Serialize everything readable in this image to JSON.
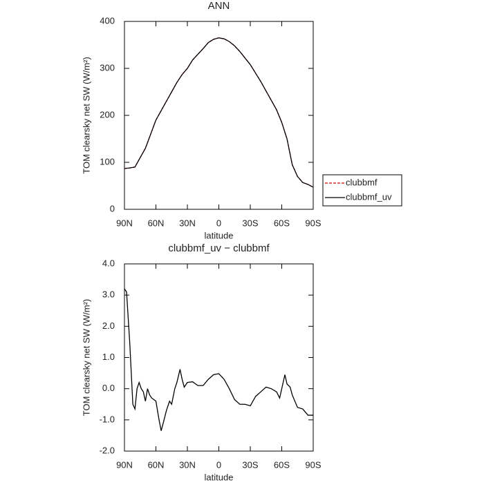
{
  "chart_data": [
    {
      "type": "line",
      "title": "ANN",
      "xlabel": "latitude",
      "ylabel": "TOM clearsky net SW (W/m²)",
      "x": [
        90,
        85,
        80,
        75,
        70,
        65,
        60,
        55,
        50,
        45,
        40,
        35,
        30,
        25,
        20,
        15,
        10,
        5,
        0,
        -5,
        -10,
        -15,
        -20,
        -25,
        -30,
        -35,
        -40,
        -45,
        -50,
        -55,
        -60,
        -65,
        -70,
        -75,
        -80,
        -85,
        -90
      ],
      "series": [
        {
          "name": "clubbmf",
          "color": "#cc0000",
          "linestyle": "dashed",
          "values": [
            87,
            88,
            90,
            110,
            130,
            160,
            190,
            210,
            230,
            250,
            270,
            287,
            300,
            318,
            330,
            342,
            355,
            362,
            365,
            363,
            357,
            348,
            336,
            322,
            308,
            290,
            272,
            252,
            232,
            212,
            185,
            150,
            95,
            70,
            57,
            53,
            47
          ]
        },
        {
          "name": "clubbmf_uv",
          "color": "#000000",
          "linestyle": "solid",
          "values": [
            87,
            88,
            90,
            110,
            130,
            160,
            190,
            210,
            230,
            250,
            270,
            287,
            300,
            318,
            330,
            342,
            355,
            362,
            365,
            363,
            357,
            348,
            336,
            322,
            308,
            290,
            272,
            252,
            232,
            212,
            185,
            150,
            95,
            70,
            57,
            53,
            47
          ]
        }
      ],
      "xlim": [
        90,
        -90
      ],
      "xticks": [
        {
          "value": 90,
          "label": "90N"
        },
        {
          "value": 60,
          "label": "60N"
        },
        {
          "value": 30,
          "label": "30N"
        },
        0,
        {
          "value": -30,
          "label": "30S"
        },
        {
          "value": -60,
          "label": "60S"
        },
        {
          "value": -90,
          "label": "90S"
        }
      ],
      "ylim": [
        0,
        400
      ],
      "yticks": [
        0,
        100,
        200,
        300,
        400
      ],
      "legend": "right"
    },
    {
      "type": "line",
      "title": "clubbmf_uv − clubbmf",
      "xlabel": "latitude",
      "ylabel": "TOM clearsky net SW (W/m²)",
      "x": [
        90,
        88,
        85,
        82,
        80,
        78,
        76,
        74,
        72,
        70,
        68,
        66,
        64,
        60,
        57,
        55,
        53,
        50,
        47,
        45,
        42,
        40,
        37,
        35,
        33,
        30,
        25,
        20,
        15,
        10,
        5,
        0,
        -5,
        -10,
        -15,
        -20,
        -25,
        -30,
        -35,
        -40,
        -45,
        -50,
        -55,
        -58,
        -60,
        -63,
        -65,
        -68,
        -70,
        -75,
        -80,
        -85,
        -90
      ],
      "values": [
        3.2,
        3.1,
        1.5,
        -0.5,
        -0.65,
        0.0,
        0.2,
        0.0,
        -0.1,
        -0.4,
        0.0,
        -0.2,
        -0.3,
        -0.4,
        -1.0,
        -1.35,
        -1.1,
        -0.7,
        -0.4,
        -0.5,
        0.0,
        0.2,
        0.62,
        0.3,
        0.05,
        0.2,
        0.22,
        0.1,
        0.1,
        0.3,
        0.45,
        0.48,
        0.3,
        0.0,
        -0.35,
        -0.5,
        -0.5,
        -0.55,
        -0.25,
        -0.1,
        0.05,
        0.0,
        -0.1,
        -0.3,
        0.0,
        0.45,
        0.15,
        0.05,
        -0.2,
        -0.6,
        -0.65,
        -0.85,
        -0.85
      ],
      "color": "#000000",
      "xlim": [
        90,
        -90
      ],
      "xticks": [
        {
          "value": 90,
          "label": "90N"
        },
        {
          "value": 60,
          "label": "60N"
        },
        {
          "value": 30,
          "label": "30N"
        },
        0,
        {
          "value": -30,
          "label": "30S"
        },
        {
          "value": -60,
          "label": "60S"
        },
        {
          "value": -90,
          "label": "90S"
        }
      ],
      "ylim": [
        -2,
        4
      ],
      "yticks": [
        {
          "value": -2,
          "label": "-2.0"
        },
        {
          "value": -1,
          "label": "-1.0"
        },
        {
          "value": 0,
          "label": "0.0"
        },
        {
          "value": 1,
          "label": "1.0"
        },
        {
          "value": 2,
          "label": "2.0"
        },
        {
          "value": 3,
          "label": "3.0"
        },
        {
          "value": 4,
          "label": "4.0"
        }
      ]
    }
  ]
}
